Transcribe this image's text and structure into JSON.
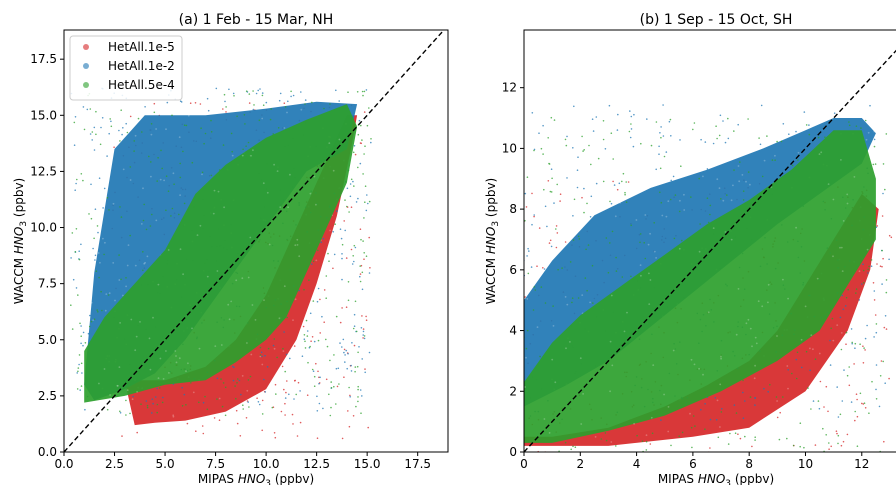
{
  "chart_data": [
    {
      "type": "scatter",
      "title": "(a) 1 Feb - 15 Mar, NH",
      "xlabel": "MIPAS HNO3 (ppbv)",
      "ylabel": "WACCM HNO3 (ppbv)",
      "xlim": [
        0,
        19
      ],
      "ylim": [
        0,
        18.8
      ],
      "xticks": [
        0.0,
        2.5,
        5.0,
        7.5,
        10.0,
        12.5,
        15.0,
        17.5
      ],
      "yticks": [
        0.0,
        2.5,
        5.0,
        7.5,
        10.0,
        12.5,
        15.0,
        17.5
      ],
      "xtick_labels": [
        "0.0",
        "2.5",
        "5.0",
        "7.5",
        "10.0",
        "12.5",
        "15.0",
        "17.5"
      ],
      "ytick_labels": [
        "0.0",
        "2.5",
        "5.0",
        "7.5",
        "10.0",
        "12.5",
        "15.0",
        "17.5"
      ],
      "reference_line": "1:1 dashed",
      "legend_position": "top-left",
      "series": [
        {
          "name": "HetAll.1e-5",
          "color": "#d62728",
          "cloud": [
            [
              3.5,
              1.2
            ],
            [
              4.5,
              1.3
            ],
            [
              6,
              1.4
            ],
            [
              8,
              1.8
            ],
            [
              10,
              2.8
            ],
            [
              11.5,
              5
            ],
            [
              12.5,
              7.5
            ],
            [
              13.5,
              10.5
            ],
            [
              14.2,
              13.5
            ],
            [
              14.5,
              15
            ],
            [
              14,
              15
            ],
            [
              13,
              13
            ],
            [
              12,
              11
            ],
            [
              11,
              9
            ],
            [
              10,
              7
            ],
            [
              8.5,
              5
            ],
            [
              7,
              3.8
            ],
            [
              5,
              3.2
            ],
            [
              3,
              3.2
            ]
          ]
        },
        {
          "name": "HetAll.1e-2",
          "color": "#1f77b4",
          "cloud": [
            [
              1,
              3
            ],
            [
              1.5,
              8
            ],
            [
              2.5,
              13.5
            ],
            [
              4,
              15
            ],
            [
              7,
              15
            ],
            [
              10,
              15.3
            ],
            [
              12.5,
              15.6
            ],
            [
              14.5,
              15.5
            ],
            [
              14,
              13.5
            ],
            [
              12,
              12.5
            ],
            [
              10,
              10
            ],
            [
              8,
              7.5
            ],
            [
              6,
              5
            ],
            [
              4.5,
              3.5
            ],
            [
              3,
              2.8
            ],
            [
              1.5,
              2.3
            ]
          ]
        },
        {
          "name": "HetAll.5e-4",
          "color": "#2ca02c",
          "cloud": [
            [
              1,
              2.2
            ],
            [
              1,
              4.5
            ],
            [
              2,
              6
            ],
            [
              3.5,
              7.5
            ],
            [
              5,
              9
            ],
            [
              6.5,
              11.5
            ],
            [
              8,
              12.8
            ],
            [
              10,
              14
            ],
            [
              12,
              14.8
            ],
            [
              14,
              15.5
            ],
            [
              14.5,
              14.5
            ],
            [
              14,
              12
            ],
            [
              13,
              10
            ],
            [
              12,
              8
            ],
            [
              11,
              6
            ],
            [
              10,
              5
            ],
            [
              8.5,
              4
            ],
            [
              7,
              3.2
            ],
            [
              5,
              3
            ],
            [
              3,
              2.5
            ]
          ]
        }
      ]
    },
    {
      "type": "scatter",
      "title": "(b) 1 Sep - 15 Oct, SH",
      "xlabel": "MIPAS HNO3 (ppbv)",
      "ylabel": "WACCM HNO3 (ppbv)",
      "xlim": [
        0,
        13.5
      ],
      "ylim": [
        0,
        13.9
      ],
      "xticks": [
        0,
        2,
        4,
        6,
        8,
        10,
        12
      ],
      "yticks": [
        0,
        2,
        4,
        6,
        8,
        10,
        12
      ],
      "xtick_labels": [
        "0",
        "2",
        "4",
        "6",
        "8",
        "10",
        "12"
      ],
      "ytick_labels": [
        "0",
        "2",
        "4",
        "6",
        "8",
        "10",
        "12"
      ],
      "reference_line": "1:1 dashed",
      "series": [
        {
          "name": "HetAll.1e-5",
          "color": "#d62728",
          "cloud": [
            [
              0,
              0.2
            ],
            [
              3,
              0.2
            ],
            [
              6,
              0.5
            ],
            [
              8,
              0.8
            ],
            [
              10,
              2
            ],
            [
              11.5,
              4
            ],
            [
              12.3,
              6
            ],
            [
              12.6,
              8
            ],
            [
              12,
              8.5
            ],
            [
              11,
              7
            ],
            [
              10,
              5.5
            ],
            [
              9,
              4
            ],
            [
              8,
              3
            ],
            [
              6.5,
              2.2
            ],
            [
              5,
              1.5
            ],
            [
              3,
              0.8
            ],
            [
              1,
              0.5
            ],
            [
              0,
              0.5
            ]
          ]
        },
        {
          "name": "HetAll.1e-2",
          "color": "#1f77b4",
          "cloud": [
            [
              0,
              1.5
            ],
            [
              0,
              5
            ],
            [
              1,
              6.3
            ],
            [
              2.5,
              7.8
            ],
            [
              4.5,
              8.7
            ],
            [
              6.5,
              9.3
            ],
            [
              8.5,
              10
            ],
            [
              10,
              10.6
            ],
            [
              11,
              11
            ],
            [
              12,
              11
            ],
            [
              12.5,
              10.5
            ],
            [
              12,
              9.5
            ],
            [
              10.5,
              8.5
            ],
            [
              9,
              7.5
            ],
            [
              7,
              6
            ],
            [
              5,
              4.5
            ],
            [
              3,
              3
            ],
            [
              1.5,
              2.2
            ]
          ]
        },
        {
          "name": "HetAll.5e-4",
          "color": "#2ca02c",
          "cloud": [
            [
              0,
              0.3
            ],
            [
              0,
              2.3
            ],
            [
              1,
              3.6
            ],
            [
              2,
              4.5
            ],
            [
              3.5,
              5.5
            ],
            [
              5,
              6.5
            ],
            [
              6.5,
              7.5
            ],
            [
              8,
              8.3
            ],
            [
              9.5,
              9.3
            ],
            [
              11,
              10.6
            ],
            [
              12,
              10.6
            ],
            [
              12.5,
              9
            ],
            [
              12.5,
              7
            ],
            [
              11.5,
              5.5
            ],
            [
              10.5,
              4
            ],
            [
              9,
              3
            ],
            [
              7,
              2
            ],
            [
              5,
              1.2
            ],
            [
              3,
              0.7
            ],
            [
              1,
              0.3
            ]
          ]
        }
      ]
    }
  ],
  "colors": {
    "reference_line": "#000000",
    "axes": "#000000",
    "background": "#ffffff"
  }
}
